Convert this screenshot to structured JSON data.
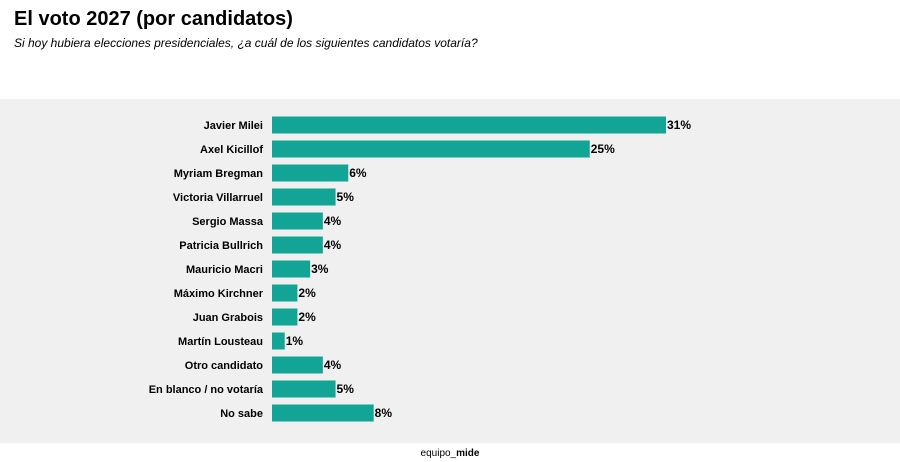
{
  "header": {
    "title": "El voto 2027 (por candidatos)",
    "subtitle": "Si hoy hubiera elecciones presidenciales, ¿a cuál de los siguientes candidatos votaría?"
  },
  "footer": {
    "brand_prefix": "equipo_",
    "brand_name": "mide"
  },
  "colors": {
    "bar": "#12a495",
    "panel_background": "#f0f0f0"
  },
  "chart_data": {
    "type": "bar",
    "orientation": "horizontal",
    "categories": [
      "Javier Milei",
      "Axel Kicillof",
      "Myriam Bregman",
      "Victoria Villarruel",
      "Sergio Massa",
      "Patricia Bullrich",
      "Mauricio Macri",
      "Máximo Kirchner",
      "Juan Grabois",
      "Martín Lousteau",
      "Otro candidato",
      "En blanco / no votaría",
      "No sabe"
    ],
    "values": [
      31,
      25,
      6,
      5,
      4,
      4,
      3,
      2,
      2,
      1,
      4,
      5,
      8
    ],
    "value_suffix": "%",
    "title": "El voto 2027 (por candidatos)",
    "xlabel": "",
    "ylabel": "",
    "xlim": [
      0,
      31
    ],
    "grid": false,
    "legend": "none"
  }
}
